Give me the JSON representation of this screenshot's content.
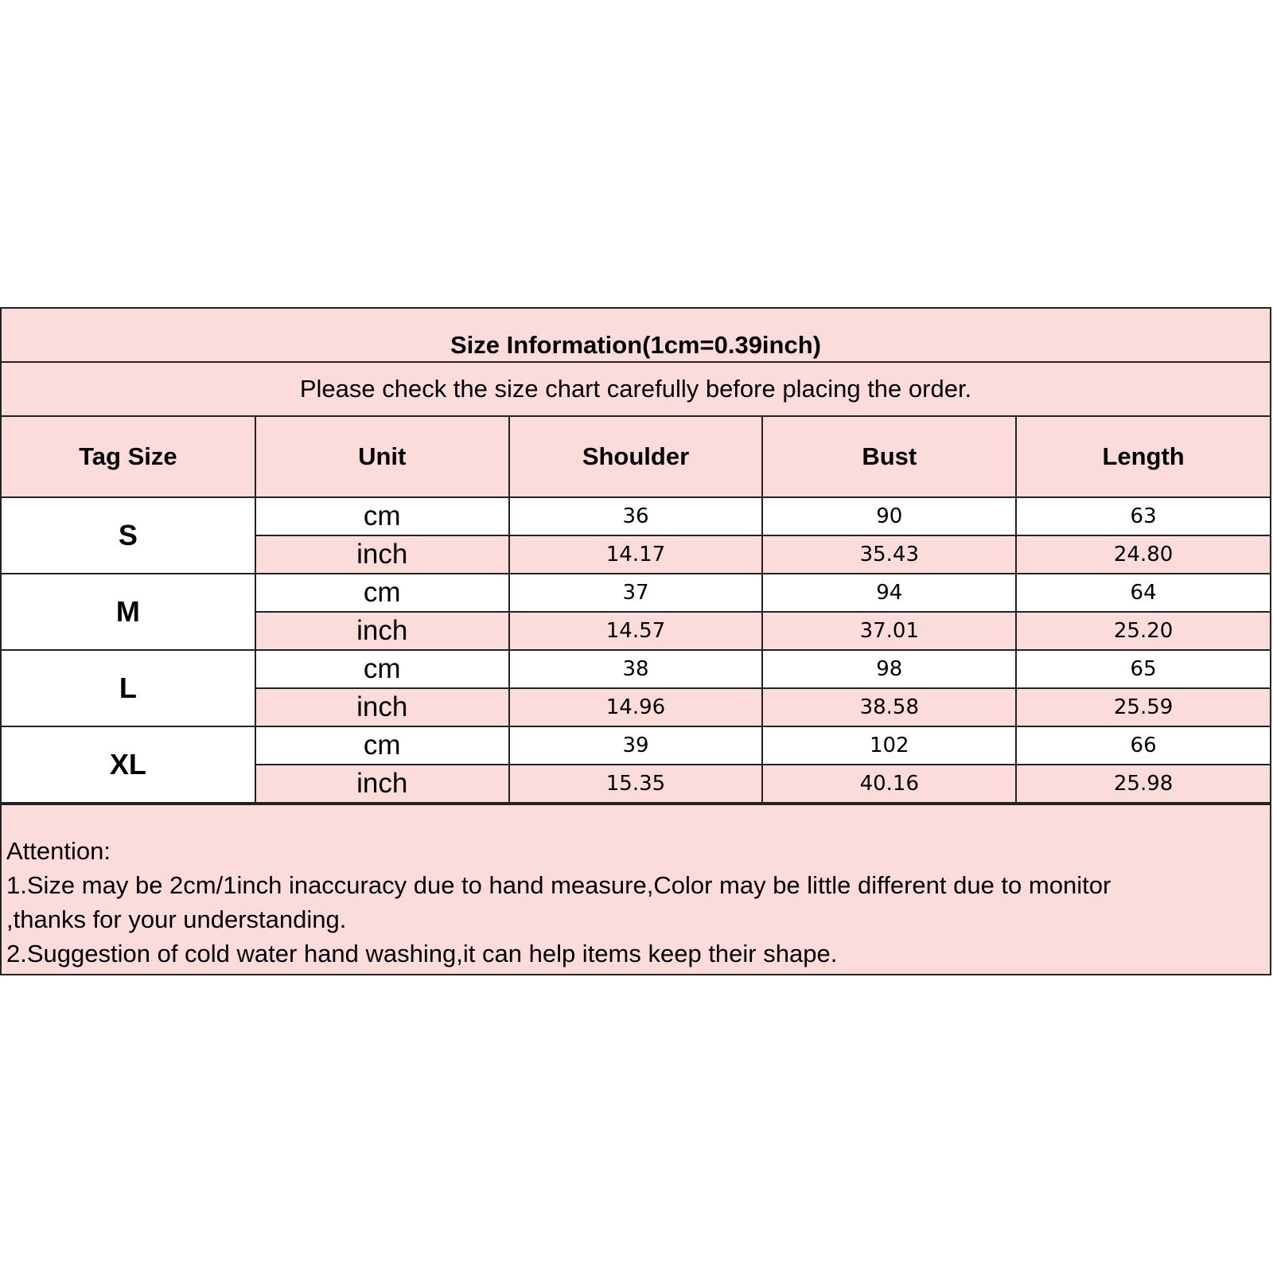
{
  "title": "Size Information(1cm=0.39inch)",
  "subtitle": "Please check the size chart carefully before placing the order.",
  "headers": [
    "Tag Size",
    "Unit",
    "Shoulder",
    "Bust",
    "Length"
  ],
  "sizes": [
    {
      "tag": "S",
      "cm": {
        "unit": "cm",
        "values": [
          "36",
          "90",
          "63"
        ]
      },
      "inch": {
        "unit": "inch",
        "values": [
          "14.17",
          "35.43",
          "24.80"
        ]
      }
    },
    {
      "tag": "M",
      "cm": {
        "unit": "cm",
        "values": [
          "37",
          "94",
          "64"
        ]
      },
      "inch": {
        "unit": "inch",
        "values": [
          "14.57",
          "37.01",
          "25.20"
        ]
      }
    },
    {
      "tag": "L",
      "cm": {
        "unit": "cm",
        "values": [
          "38",
          "98",
          "65"
        ]
      },
      "inch": {
        "unit": "inch",
        "values": [
          "14.96",
          "38.58",
          "25.59"
        ]
      }
    },
    {
      "tag": "XL",
      "cm": {
        "unit": "cm",
        "values": [
          "39",
          "102",
          "66"
        ]
      },
      "inch": {
        "unit": "inch",
        "values": [
          "15.35",
          "40.16",
          "25.98"
        ]
      }
    }
  ],
  "notes": {
    "heading": "Attention:",
    "lines": [
      "1.Size may be 2cm/1inch inaccuracy due to hand measure,Color may be little different due to monitor",
      ",thanks for your understanding.",
      "2.Suggestion of cold water hand washing,it can help items keep their shape."
    ]
  },
  "colors": {
    "header_bg": "#fcdcdb",
    "border": "#222222"
  }
}
